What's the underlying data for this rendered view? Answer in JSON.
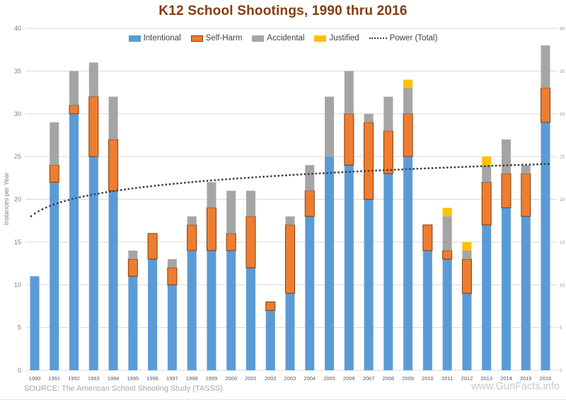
{
  "chart": {
    "title": "K12 School Shootings, 1990 thru 2016",
    "title_color": "#843C0C",
    "y_axis_label": "Instances per Year",
    "source": "SOURCE: The American School Shooting Study (TASSS)",
    "watermark": "www.GunFacts.info",
    "legend": [
      {
        "label": "Intentional",
        "color": "#5B9BD5",
        "type": "box"
      },
      {
        "label": "Self-Harm",
        "color": "#ED7D31",
        "border": "#843C0C",
        "type": "box"
      },
      {
        "label": "Accidental",
        "color": "#A5A5A5",
        "type": "box"
      },
      {
        "label": "Justified",
        "color": "#FFC000",
        "type": "box"
      },
      {
        "label": "Power (Total)",
        "color": "#404040",
        "type": "dotted-line"
      }
    ],
    "colors": {
      "grid": "#D9D9D9",
      "left_tick_text": "#7f7f7f",
      "right_tick_text": "#9a9a9a",
      "year_tick_text": "#595959",
      "trend_dots": "#404040"
    }
  },
  "chart_data": {
    "type": "bar",
    "stacked": true,
    "title": "K12 School Shootings, 1990 thru 2016",
    "xlabel": "",
    "ylabel": "Instances per Year",
    "ylim": [
      0,
      40
    ],
    "y_ticks": [
      0,
      5,
      10,
      15,
      20,
      25,
      30,
      35,
      40
    ],
    "grid": true,
    "legend_position": "top-center-inside",
    "categories": [
      "1990",
      "1991",
      "1992",
      "1993",
      "1994",
      "1995",
      "1996",
      "1997",
      "1998",
      "1999",
      "2000",
      "2001",
      "2002",
      "2003",
      "2004",
      "2005",
      "2006",
      "2007",
      "2008",
      "2009",
      "2010",
      "2011",
      "2012",
      "2013",
      "2014",
      "2015",
      "2016"
    ],
    "series": [
      {
        "name": "Intentional",
        "color": "#5B9BD5",
        "values": [
          11,
          22,
          30,
          25,
          21,
          11,
          13,
          10,
          14,
          14,
          14,
          12,
          7,
          9,
          18,
          25,
          24,
          20,
          23,
          25,
          14,
          13,
          9,
          17,
          19,
          18,
          29
        ]
      },
      {
        "name": "Self-Harm",
        "color": "#ED7D31",
        "border_color": "#843C0C",
        "values": [
          0,
          2,
          1,
          7,
          6,
          2,
          3,
          2,
          3,
          5,
          2,
          6,
          1,
          8,
          3,
          0,
          6,
          9,
          5,
          5,
          3,
          1,
          4,
          5,
          4,
          5,
          4
        ]
      },
      {
        "name": "Accidental",
        "color": "#A5A5A5",
        "values": [
          0,
          5,
          4,
          4,
          5,
          1,
          0,
          1,
          1,
          3,
          5,
          3,
          0,
          1,
          3,
          7,
          5,
          1,
          4,
          3,
          0,
          4,
          1,
          2,
          4,
          1,
          5
        ]
      },
      {
        "name": "Justified",
        "color": "#FFC000",
        "values": [
          0,
          0,
          0,
          0,
          0,
          0,
          0,
          0,
          0,
          0,
          0,
          0,
          0,
          0,
          0,
          0,
          0,
          0,
          0,
          1,
          0,
          1,
          1,
          1,
          0,
          0,
          0
        ]
      }
    ],
    "totals": [
      11,
      29,
      35,
      36,
      32,
      14,
      16,
      13,
      18,
      22,
      21,
      21,
      8,
      18,
      24,
      32,
      35,
      30,
      32,
      34,
      17,
      19,
      15,
      25,
      27,
      24,
      38
    ],
    "trend": {
      "name": "Power (Total)",
      "style": "dotted",
      "color": "#404040",
      "power_fit": {
        "a": 18.32,
        "b": 0.0835
      },
      "values": [
        18.3,
        19.4,
        20.1,
        20.6,
        21.0,
        21.3,
        21.6,
        21.8,
        22.0,
        22.2,
        22.4,
        22.5,
        22.7,
        22.8,
        23.0,
        23.1,
        23.2,
        23.3,
        23.4,
        23.5,
        23.6,
        23.7,
        23.8,
        23.9,
        24.0,
        24.0,
        24.1
      ]
    }
  }
}
